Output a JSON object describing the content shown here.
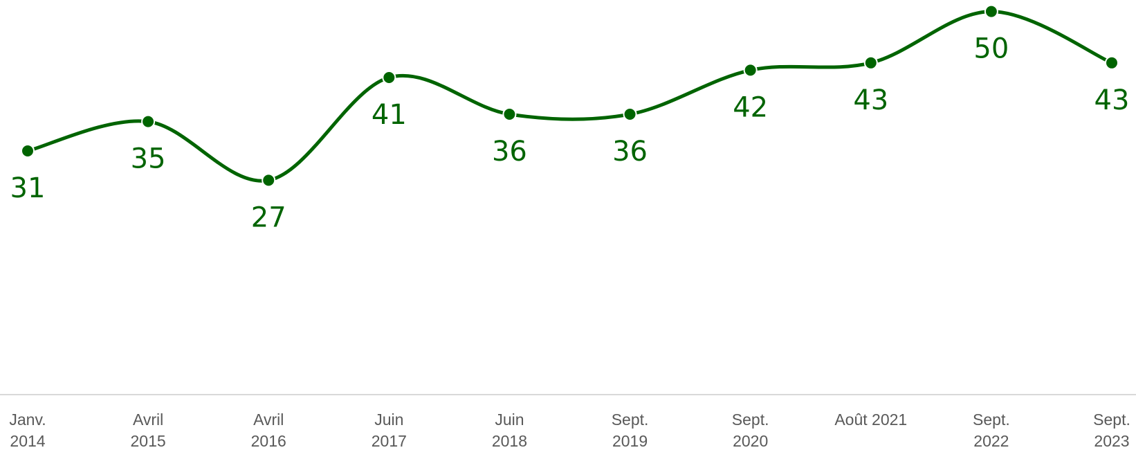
{
  "chart_data": {
    "type": "line",
    "categories": [
      [
        "Janv.",
        "2014"
      ],
      [
        "Avril",
        "2015"
      ],
      [
        "Avril",
        "2016"
      ],
      [
        "Juin",
        "2017"
      ],
      [
        "Juin",
        "2018"
      ],
      [
        "Sept.",
        "2019"
      ],
      [
        "Sept.",
        "2020"
      ],
      [
        "Août 2021"
      ],
      [
        "Sept.",
        "2022"
      ],
      [
        "Sept.",
        "2023"
      ]
    ],
    "values": [
      31,
      35,
      27,
      41,
      36,
      36,
      42,
      43,
      50,
      43
    ],
    "data_labels": [
      "31",
      "35",
      "27",
      "41",
      "36",
      "36",
      "42",
      "43",
      "50",
      "43"
    ],
    "line_style": "smooth",
    "markers": true,
    "grid": false,
    "legend": "none",
    "colors": {
      "series": "#006400",
      "axis": "#d9d9d9",
      "tick_text": "#595959"
    }
  }
}
